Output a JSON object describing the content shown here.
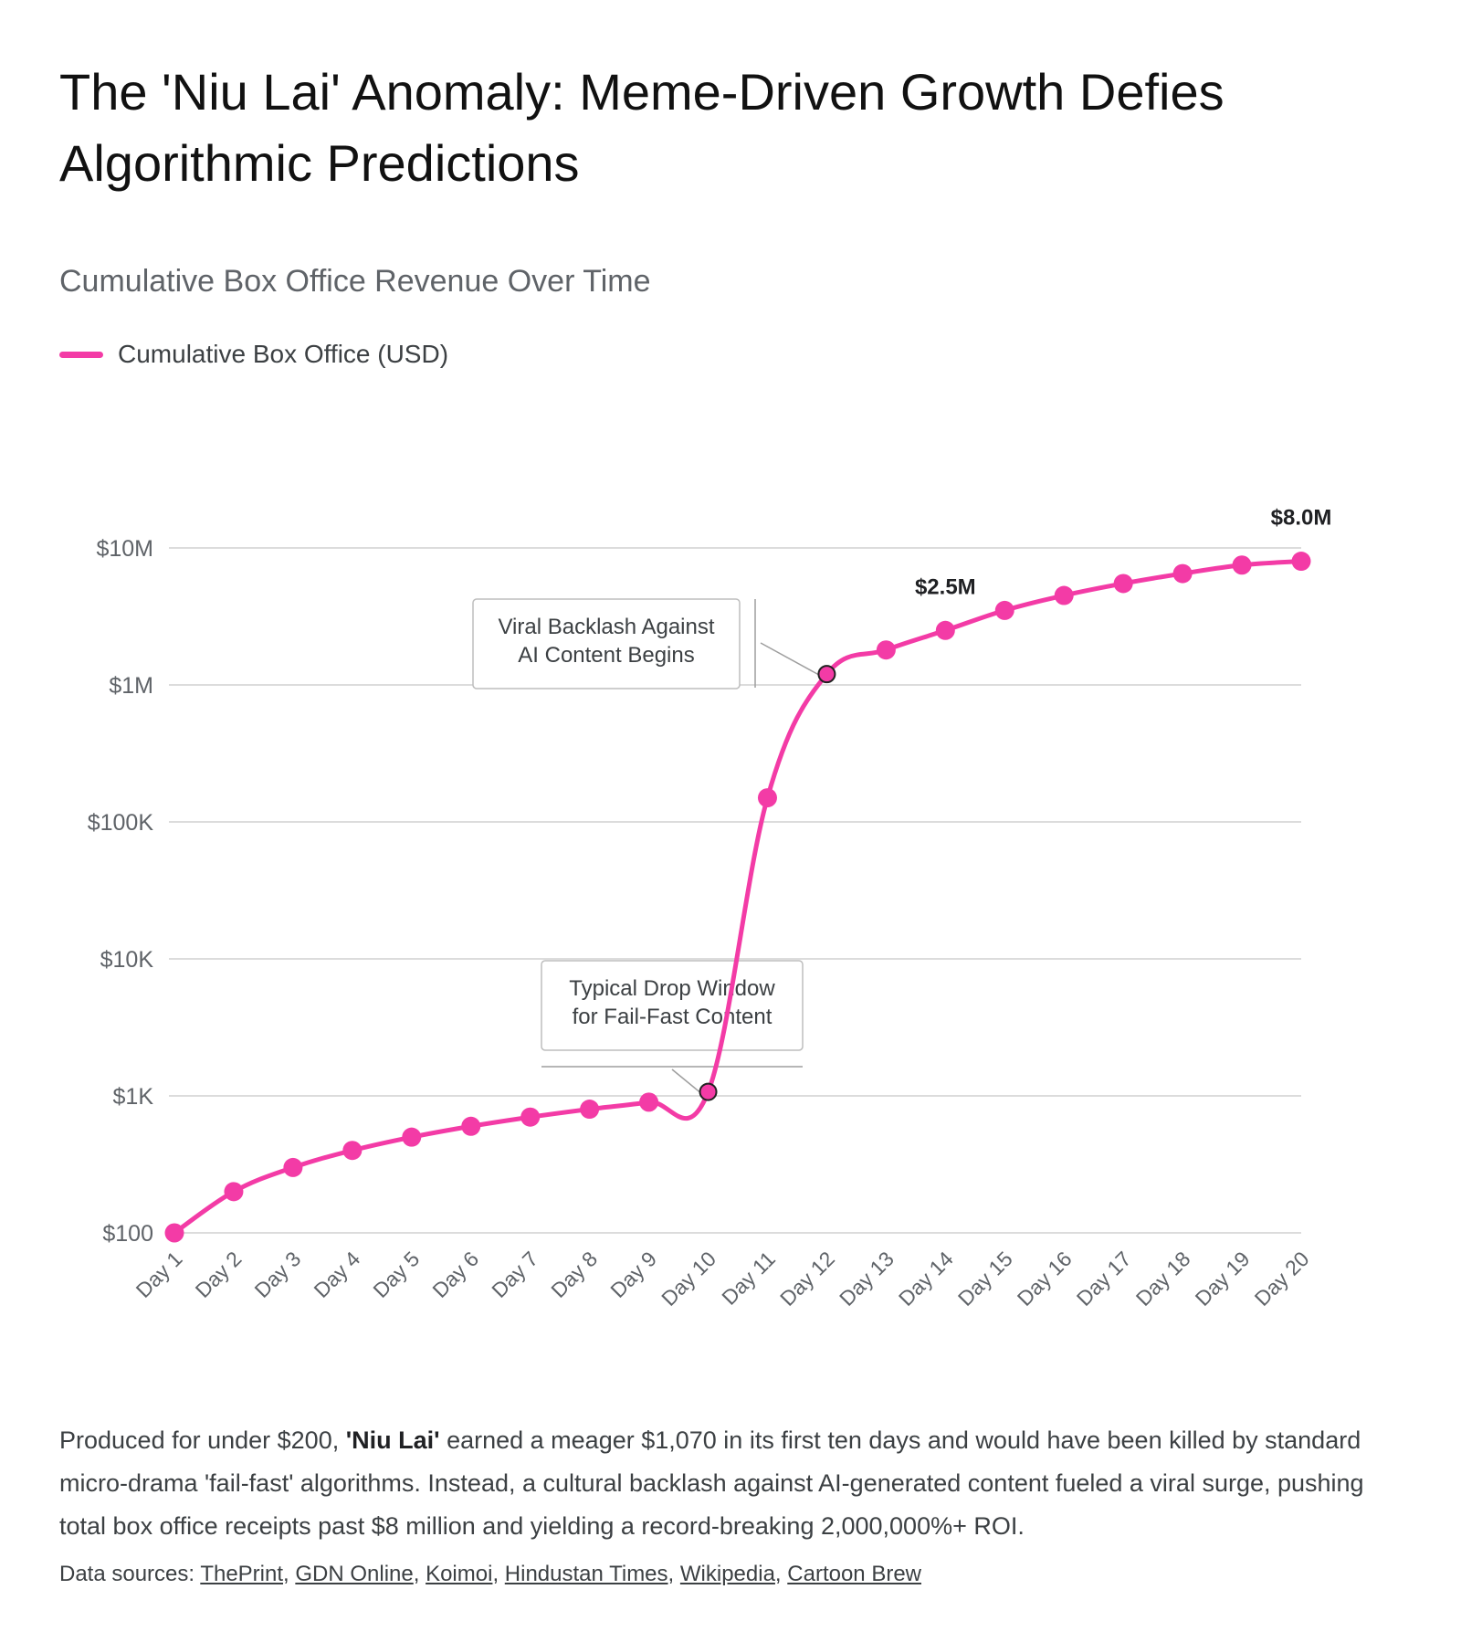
{
  "title": "The 'Niu Lai' Anomaly: Meme-Driven Growth Defies Algorithmic Predictions",
  "subtitle": "Cumulative Box Office Revenue Over Time",
  "description": {
    "prefix": "Produced for under $200, ",
    "bold": "'Niu Lai'",
    "suffix": " earned a meager $1,070 in its first ten days and would have been killed by standard micro-drama 'fail-fast' algorithms. Instead, a cultural backlash against AI-generated content fueled a viral surge, pushing total box office receipts past $8 million and yielding a record-breaking 2,000,000%+ ROI."
  },
  "sources": {
    "label": "Data sources:",
    "links": [
      "ThePrint",
      "GDN Online",
      "Koimoi",
      "Hindustan Times",
      "Wikipedia",
      "Cartoon Brew"
    ]
  },
  "colors": {
    "series": "#f33ba6",
    "grid": "#d0d0d0",
    "axis_text": "#5f6368",
    "annotation_border": "#bdbdbd",
    "annotation_leader": "#9e9e9e"
  },
  "chart_data": {
    "type": "line",
    "y_scale": "log",
    "ylim": [
      100,
      10000000
    ],
    "grid": true,
    "legend_position": "top-left",
    "categories": [
      "Day 1",
      "Day 2",
      "Day 3",
      "Day 4",
      "Day 5",
      "Day 6",
      "Day 7",
      "Day 8",
      "Day 9",
      "Day 10",
      "Day 11",
      "Day 12",
      "Day 13",
      "Day 14",
      "Day 15",
      "Day 16",
      "Day 17",
      "Day 18",
      "Day 19",
      "Day 20"
    ],
    "y_ticks": [
      {
        "value": 100,
        "label": "$100"
      },
      {
        "value": 1000,
        "label": "$1K"
      },
      {
        "value": 10000,
        "label": "$10K"
      },
      {
        "value": 100000,
        "label": "$100K"
      },
      {
        "value": 1000000,
        "label": "$1M"
      },
      {
        "value": 10000000,
        "label": "$10M"
      }
    ],
    "series": [
      {
        "name": "Cumulative Box Office (USD)",
        "values": [
          100,
          200,
          300,
          400,
          500,
          600,
          700,
          800,
          900,
          1070,
          150000,
          1200000,
          1800000,
          2500000,
          3500000,
          4500000,
          5500000,
          6500000,
          7500000,
          8000000
        ]
      }
    ],
    "data_labels": [
      {
        "index": 13,
        "text": "$2.5M"
      },
      {
        "index": 19,
        "text": "$8.0M"
      }
    ],
    "highlighted_points": [
      9,
      11
    ],
    "annotations": [
      {
        "index": 11,
        "lines": [
          "Viral Backlash Against",
          "AI Content Begins"
        ]
      },
      {
        "index": 9,
        "lines": [
          "Typical Drop Window",
          "for Fail-Fast Content"
        ]
      }
    ]
  }
}
